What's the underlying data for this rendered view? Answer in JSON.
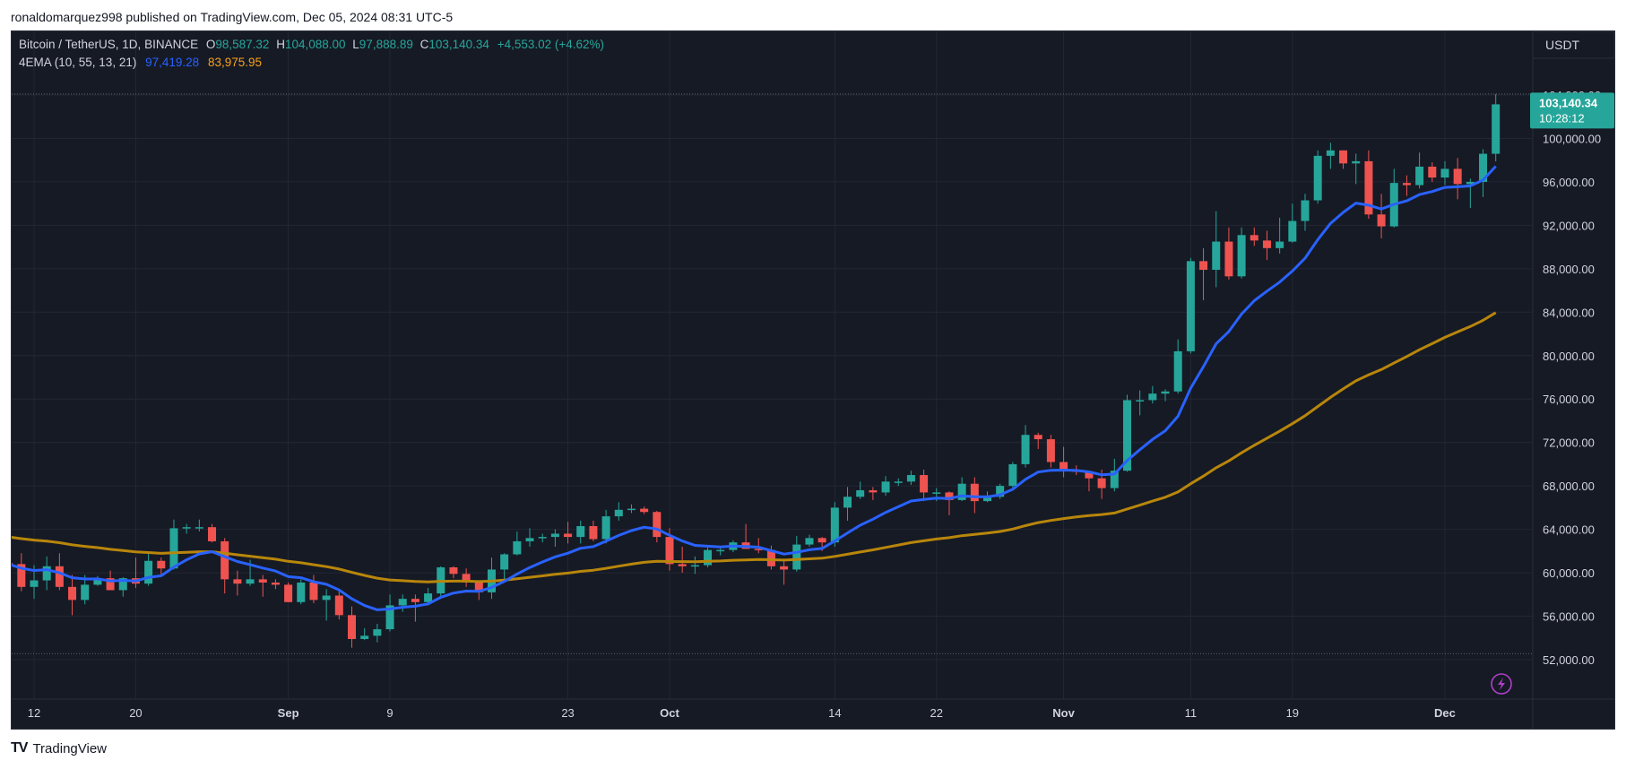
{
  "header": {
    "published_text": "ronaldomarquez998 published on TradingView.com, Dec 05, 2024 08:31 UTC-5"
  },
  "footer": {
    "brand_logo": "TV",
    "brand_text": "TradingView"
  },
  "colors": {
    "up": "#26a69a",
    "down": "#ef5350",
    "ema_fast": "#2962ff",
    "ema_slow": "#b8860b",
    "background": "#161a25",
    "grid": "#232734",
    "text": "#d1d4dc"
  },
  "chart_data": {
    "type": "candlestick",
    "symbol_label": "Bitcoin / TetherUS, 1D, BINANCE",
    "ohlc": {
      "o_label": "O",
      "o_value": "98,587.32",
      "h_label": "H",
      "h_value": "104,088.00",
      "l_label": "L",
      "l_value": "97,888.89",
      "c_label": "C",
      "c_value": "103,140.34",
      "change": "+4,553.02 (+4.62%)"
    },
    "indicator": {
      "label": "4EMA (10, 55, 13, 21)",
      "value1": "97,419.28",
      "value2": "83,975.95"
    },
    "currency": "USDT",
    "last_price_label": "103,140.34",
    "countdown": "10:28:12",
    "ylim": [
      48000,
      107000
    ],
    "y_ticks": [
      {
        "value": 52000,
        "label": "52,000.00"
      },
      {
        "value": 56000,
        "label": "56,000.00"
      },
      {
        "value": 60000,
        "label": "60,000.00"
      },
      {
        "value": 64000,
        "label": "64,000.00"
      },
      {
        "value": 68000,
        "label": "68,000.00"
      },
      {
        "value": 72000,
        "label": "72,000.00"
      },
      {
        "value": 76000,
        "label": "76,000.00"
      },
      {
        "value": 80000,
        "label": "80,000.00"
      },
      {
        "value": 84000,
        "label": "84,000.00"
      },
      {
        "value": 88000,
        "label": "88,000.00"
      },
      {
        "value": 92000,
        "label": "92,000.00"
      },
      {
        "value": 96000,
        "label": "96,000.00"
      },
      {
        "value": 100000,
        "label": "100,000.00"
      },
      {
        "value": 104000,
        "label": "104,000.00"
      }
    ],
    "x_ticks": [
      {
        "date": "2024-08-12",
        "label": "12",
        "bold": false
      },
      {
        "date": "2024-08-20",
        "label": "20",
        "bold": false
      },
      {
        "date": "2024-09-01",
        "label": "Sep",
        "bold": true
      },
      {
        "date": "2024-09-09",
        "label": "9",
        "bold": false
      },
      {
        "date": "2024-09-23",
        "label": "23",
        "bold": false
      },
      {
        "date": "2024-10-01",
        "label": "Oct",
        "bold": true
      },
      {
        "date": "2024-10-14",
        "label": "14",
        "bold": false
      },
      {
        "date": "2024-10-22",
        "label": "22",
        "bold": false
      },
      {
        "date": "2024-11-01",
        "label": "Nov",
        "bold": true
      },
      {
        "date": "2024-11-11",
        "label": "11",
        "bold": false
      },
      {
        "date": "2024-11-19",
        "label": "19",
        "bold": false
      },
      {
        "date": "2024-12-01",
        "label": "Dec",
        "bold": true
      }
    ],
    "range_high": 104088,
    "range_low": 52550,
    "candles": [
      {
        "d": "2024-08-10",
        "o": 60900,
        "h": 61500,
        "l": 60300,
        "c": 60800
      },
      {
        "d": "2024-08-11",
        "o": 60800,
        "h": 61800,
        "l": 58300,
        "c": 58700
      },
      {
        "d": "2024-08-12",
        "o": 58700,
        "h": 60700,
        "l": 57600,
        "c": 59300
      },
      {
        "d": "2024-08-13",
        "o": 59300,
        "h": 61500,
        "l": 58400,
        "c": 60600
      },
      {
        "d": "2024-08-14",
        "o": 60600,
        "h": 61800,
        "l": 58400,
        "c": 58700
      },
      {
        "d": "2024-08-15",
        "o": 58700,
        "h": 59800,
        "l": 56100,
        "c": 57500
      },
      {
        "d": "2024-08-16",
        "o": 57500,
        "h": 59800,
        "l": 57100,
        "c": 58900
      },
      {
        "d": "2024-08-17",
        "o": 58900,
        "h": 59700,
        "l": 58800,
        "c": 59500
      },
      {
        "d": "2024-08-18",
        "o": 59500,
        "h": 60200,
        "l": 58400,
        "c": 58400
      },
      {
        "d": "2024-08-19",
        "o": 58400,
        "h": 59600,
        "l": 57800,
        "c": 59500
      },
      {
        "d": "2024-08-20",
        "o": 59500,
        "h": 61400,
        "l": 58600,
        "c": 59000
      },
      {
        "d": "2024-08-21",
        "o": 59000,
        "h": 61800,
        "l": 58800,
        "c": 61100
      },
      {
        "d": "2024-08-22",
        "o": 61100,
        "h": 61400,
        "l": 59800,
        "c": 60400
      },
      {
        "d": "2024-08-23",
        "o": 60400,
        "h": 64900,
        "l": 60300,
        "c": 64100
      },
      {
        "d": "2024-08-24",
        "o": 64100,
        "h": 64500,
        "l": 63600,
        "c": 64200
      },
      {
        "d": "2024-08-25",
        "o": 64200,
        "h": 64900,
        "l": 63800,
        "c": 64200
      },
      {
        "d": "2024-08-26",
        "o": 64200,
        "h": 64500,
        "l": 62800,
        "c": 62900
      },
      {
        "d": "2024-08-27",
        "o": 62900,
        "h": 63200,
        "l": 58100,
        "c": 59400
      },
      {
        "d": "2024-08-28",
        "o": 59400,
        "h": 60200,
        "l": 57900,
        "c": 59000
      },
      {
        "d": "2024-08-29",
        "o": 59000,
        "h": 61200,
        "l": 58800,
        "c": 59400
      },
      {
        "d": "2024-08-30",
        "o": 59400,
        "h": 59800,
        "l": 57800,
        "c": 59100
      },
      {
        "d": "2024-08-31",
        "o": 59100,
        "h": 59400,
        "l": 58500,
        "c": 58900
      },
      {
        "d": "2024-09-01",
        "o": 58900,
        "h": 59100,
        "l": 57300,
        "c": 57300
      },
      {
        "d": "2024-09-02",
        "o": 57300,
        "h": 59400,
        "l": 57100,
        "c": 59100
      },
      {
        "d": "2024-09-03",
        "o": 59100,
        "h": 59800,
        "l": 57200,
        "c": 57500
      },
      {
        "d": "2024-09-04",
        "o": 57500,
        "h": 58500,
        "l": 55600,
        "c": 57900
      },
      {
        "d": "2024-09-05",
        "o": 57900,
        "h": 58300,
        "l": 55700,
        "c": 56100
      },
      {
        "d": "2024-09-06",
        "o": 56100,
        "h": 56900,
        "l": 53100,
        "c": 53900
      },
      {
        "d": "2024-09-07",
        "o": 53900,
        "h": 54900,
        "l": 53800,
        "c": 54200
      },
      {
        "d": "2024-09-08",
        "o": 54200,
        "h": 55300,
        "l": 53600,
        "c": 54800
      },
      {
        "d": "2024-09-09",
        "o": 54800,
        "h": 58000,
        "l": 54600,
        "c": 57000
      },
      {
        "d": "2024-09-10",
        "o": 57000,
        "h": 58000,
        "l": 56400,
        "c": 57600
      },
      {
        "d": "2024-09-11",
        "o": 57600,
        "h": 58000,
        "l": 55500,
        "c": 57300
      },
      {
        "d": "2024-09-12",
        "o": 57300,
        "h": 58600,
        "l": 57000,
        "c": 58100
      },
      {
        "d": "2024-09-13",
        "o": 58100,
        "h": 60600,
        "l": 57600,
        "c": 60500
      },
      {
        "d": "2024-09-14",
        "o": 60500,
        "h": 60600,
        "l": 59500,
        "c": 59900
      },
      {
        "d": "2024-09-15",
        "o": 59900,
        "h": 60400,
        "l": 58700,
        "c": 59100
      },
      {
        "d": "2024-09-16",
        "o": 59100,
        "h": 59200,
        "l": 57500,
        "c": 58200
      },
      {
        "d": "2024-09-17",
        "o": 58200,
        "h": 61400,
        "l": 57600,
        "c": 60300
      },
      {
        "d": "2024-09-18",
        "o": 60300,
        "h": 61800,
        "l": 59200,
        "c": 61700
      },
      {
        "d": "2024-09-19",
        "o": 61700,
        "h": 63800,
        "l": 61600,
        "c": 62900
      },
      {
        "d": "2024-09-20",
        "o": 62900,
        "h": 64100,
        "l": 62400,
        "c": 63200
      },
      {
        "d": "2024-09-21",
        "o": 63200,
        "h": 63600,
        "l": 62800,
        "c": 63300
      },
      {
        "d": "2024-09-22",
        "o": 63300,
        "h": 64000,
        "l": 62400,
        "c": 63600
      },
      {
        "d": "2024-09-23",
        "o": 63600,
        "h": 64700,
        "l": 62700,
        "c": 63300
      },
      {
        "d": "2024-09-24",
        "o": 63300,
        "h": 64800,
        "l": 62700,
        "c": 64300
      },
      {
        "d": "2024-09-25",
        "o": 64300,
        "h": 64800,
        "l": 62900,
        "c": 63100
      },
      {
        "d": "2024-09-26",
        "o": 63100,
        "h": 65800,
        "l": 62700,
        "c": 65200
      },
      {
        "d": "2024-09-27",
        "o": 65200,
        "h": 66500,
        "l": 64800,
        "c": 65800
      },
      {
        "d": "2024-09-28",
        "o": 65800,
        "h": 66300,
        "l": 65500,
        "c": 65900
      },
      {
        "d": "2024-09-29",
        "o": 65900,
        "h": 66100,
        "l": 65400,
        "c": 65600
      },
      {
        "d": "2024-09-30",
        "o": 65600,
        "h": 65700,
        "l": 62800,
        "c": 63300
      },
      {
        "d": "2024-10-01",
        "o": 63300,
        "h": 64100,
        "l": 60200,
        "c": 60800
      },
      {
        "d": "2024-10-02",
        "o": 60800,
        "h": 62400,
        "l": 60000,
        "c": 60600
      },
      {
        "d": "2024-10-03",
        "o": 60600,
        "h": 61500,
        "l": 59900,
        "c": 60700
      },
      {
        "d": "2024-10-04",
        "o": 60700,
        "h": 62500,
        "l": 60500,
        "c": 62100
      },
      {
        "d": "2024-10-05",
        "o": 62100,
        "h": 62400,
        "l": 61600,
        "c": 62100
      },
      {
        "d": "2024-10-06",
        "o": 62100,
        "h": 63000,
        "l": 61900,
        "c": 62800
      },
      {
        "d": "2024-10-07",
        "o": 62800,
        "h": 64500,
        "l": 62200,
        "c": 62200
      },
      {
        "d": "2024-10-08",
        "o": 62200,
        "h": 63200,
        "l": 61800,
        "c": 62100
      },
      {
        "d": "2024-10-09",
        "o": 62100,
        "h": 62500,
        "l": 60300,
        "c": 60600
      },
      {
        "d": "2024-10-10",
        "o": 60600,
        "h": 61300,
        "l": 58900,
        "c": 60300
      },
      {
        "d": "2024-10-11",
        "o": 60300,
        "h": 63400,
        "l": 60100,
        "c": 62600
      },
      {
        "d": "2024-10-12",
        "o": 62600,
        "h": 63500,
        "l": 62400,
        "c": 63200
      },
      {
        "d": "2024-10-13",
        "o": 63200,
        "h": 63300,
        "l": 62000,
        "c": 62800
      },
      {
        "d": "2024-10-14",
        "o": 62800,
        "h": 66500,
        "l": 62400,
        "c": 66000
      },
      {
        "d": "2024-10-15",
        "o": 66000,
        "h": 67900,
        "l": 64800,
        "c": 67000
      },
      {
        "d": "2024-10-16",
        "o": 67000,
        "h": 68400,
        "l": 66800,
        "c": 67600
      },
      {
        "d": "2024-10-17",
        "o": 67600,
        "h": 67900,
        "l": 66700,
        "c": 67400
      },
      {
        "d": "2024-10-18",
        "o": 67400,
        "h": 68900,
        "l": 67100,
        "c": 68400
      },
      {
        "d": "2024-10-19",
        "o": 68400,
        "h": 68700,
        "l": 68000,
        "c": 68400
      },
      {
        "d": "2024-10-20",
        "o": 68400,
        "h": 69400,
        "l": 68100,
        "c": 69000
      },
      {
        "d": "2024-10-21",
        "o": 69000,
        "h": 69500,
        "l": 66600,
        "c": 67400
      },
      {
        "d": "2024-10-22",
        "o": 67400,
        "h": 67800,
        "l": 66600,
        "c": 67400
      },
      {
        "d": "2024-10-23",
        "o": 67400,
        "h": 67500,
        "l": 65300,
        "c": 66700
      },
      {
        "d": "2024-10-24",
        "o": 66700,
        "h": 68800,
        "l": 66600,
        "c": 68200
      },
      {
        "d": "2024-10-25",
        "o": 68200,
        "h": 68800,
        "l": 65500,
        "c": 66600
      },
      {
        "d": "2024-10-26",
        "o": 66600,
        "h": 67500,
        "l": 66500,
        "c": 67000
      },
      {
        "d": "2024-10-27",
        "o": 67000,
        "h": 68200,
        "l": 66800,
        "c": 68000
      },
      {
        "d": "2024-10-28",
        "o": 68000,
        "h": 70200,
        "l": 67600,
        "c": 70000
      },
      {
        "d": "2024-10-29",
        "o": 70000,
        "h": 73600,
        "l": 69700,
        "c": 72700
      },
      {
        "d": "2024-10-30",
        "o": 72700,
        "h": 72900,
        "l": 71400,
        "c": 72300
      },
      {
        "d": "2024-10-31",
        "o": 72300,
        "h": 72700,
        "l": 69700,
        "c": 70200
      },
      {
        "d": "2024-11-01",
        "o": 70200,
        "h": 71600,
        "l": 68800,
        "c": 69500
      },
      {
        "d": "2024-11-02",
        "o": 69500,
        "h": 69900,
        "l": 69000,
        "c": 69300
      },
      {
        "d": "2024-11-03",
        "o": 69300,
        "h": 69400,
        "l": 67500,
        "c": 68700
      },
      {
        "d": "2024-11-04",
        "o": 68700,
        "h": 69500,
        "l": 66800,
        "c": 67800
      },
      {
        "d": "2024-11-05",
        "o": 67800,
        "h": 70500,
        "l": 67500,
        "c": 69400
      },
      {
        "d": "2024-11-06",
        "o": 69400,
        "h": 76400,
        "l": 69300,
        "c": 75900
      },
      {
        "d": "2024-11-07",
        "o": 75900,
        "h": 76800,
        "l": 74500,
        "c": 75900
      },
      {
        "d": "2024-11-08",
        "o": 75900,
        "h": 77200,
        "l": 75600,
        "c": 76500
      },
      {
        "d": "2024-11-09",
        "o": 76500,
        "h": 76900,
        "l": 75800,
        "c": 76700
      },
      {
        "d": "2024-11-10",
        "o": 76700,
        "h": 81500,
        "l": 76500,
        "c": 80400
      },
      {
        "d": "2024-11-11",
        "o": 80400,
        "h": 89000,
        "l": 80200,
        "c": 88700
      },
      {
        "d": "2024-11-12",
        "o": 88700,
        "h": 89900,
        "l": 85100,
        "c": 87900
      },
      {
        "d": "2024-11-13",
        "o": 87900,
        "h": 93300,
        "l": 86300,
        "c": 90500
      },
      {
        "d": "2024-11-14",
        "o": 90500,
        "h": 91800,
        "l": 87000,
        "c": 87300
      },
      {
        "d": "2024-11-15",
        "o": 87300,
        "h": 91800,
        "l": 87100,
        "c": 91100
      },
      {
        "d": "2024-11-16",
        "o": 91100,
        "h": 91800,
        "l": 90100,
        "c": 90600
      },
      {
        "d": "2024-11-17",
        "o": 90600,
        "h": 91500,
        "l": 88800,
        "c": 89900
      },
      {
        "d": "2024-11-18",
        "o": 89900,
        "h": 92700,
        "l": 89400,
        "c": 90500
      },
      {
        "d": "2024-11-19",
        "o": 90500,
        "h": 94000,
        "l": 90400,
        "c": 92400
      },
      {
        "d": "2024-11-20",
        "o": 92400,
        "h": 94900,
        "l": 91500,
        "c": 94300
      },
      {
        "d": "2024-11-21",
        "o": 94300,
        "h": 98900,
        "l": 94000,
        "c": 98400
      },
      {
        "d": "2024-11-22",
        "o": 98400,
        "h": 99600,
        "l": 97200,
        "c": 98900
      },
      {
        "d": "2024-11-23",
        "o": 98900,
        "h": 98900,
        "l": 97200,
        "c": 97700
      },
      {
        "d": "2024-11-24",
        "o": 97700,
        "h": 98600,
        "l": 95800,
        "c": 97900
      },
      {
        "d": "2024-11-25",
        "o": 97900,
        "h": 98900,
        "l": 92600,
        "c": 93000
      },
      {
        "d": "2024-11-26",
        "o": 93000,
        "h": 94900,
        "l": 90800,
        "c": 91900
      },
      {
        "d": "2024-11-27",
        "o": 91900,
        "h": 97200,
        "l": 91800,
        "c": 95900
      },
      {
        "d": "2024-11-28",
        "o": 95900,
        "h": 96600,
        "l": 94700,
        "c": 95700
      },
      {
        "d": "2024-11-29",
        "o": 95700,
        "h": 98700,
        "l": 95400,
        "c": 97400
      },
      {
        "d": "2024-11-30",
        "o": 97400,
        "h": 97800,
        "l": 96000,
        "c": 96400
      },
      {
        "d": "2024-12-01",
        "o": 96400,
        "h": 97900,
        "l": 95700,
        "c": 97200
      },
      {
        "d": "2024-12-02",
        "o": 97200,
        "h": 98200,
        "l": 94400,
        "c": 95800
      },
      {
        "d": "2024-12-03",
        "o": 95800,
        "h": 96300,
        "l": 93600,
        "c": 96000
      },
      {
        "d": "2024-12-04",
        "o": 96000,
        "h": 99000,
        "l": 94600,
        "c": 98587
      },
      {
        "d": "2024-12-05",
        "o": 98587,
        "h": 104088,
        "l": 97889,
        "c": 103140
      }
    ]
  }
}
